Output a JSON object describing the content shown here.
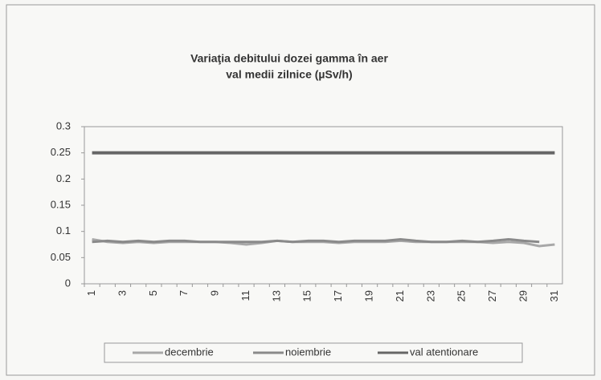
{
  "chart_data": {
    "type": "line",
    "title": "Variaţia debitului dozei gamma în aer",
    "subtitle": "val medii zilnice (µSv/h)",
    "categories": [
      1,
      null,
      3,
      null,
      5,
      null,
      7,
      null,
      9,
      null,
      11,
      null,
      13,
      null,
      15,
      null,
      17,
      null,
      19,
      null,
      21,
      null,
      23,
      null,
      25,
      null,
      27,
      null,
      29,
      null,
      31
    ],
    "series": [
      {
        "name": "decembrie",
        "color": "#a8a8a8",
        "values": [
          0.085,
          0.08,
          0.078,
          0.08,
          0.078,
          0.08,
          0.08,
          0.08,
          0.08,
          0.078,
          0.075,
          0.078,
          0.082,
          0.08,
          0.08,
          0.08,
          0.078,
          0.08,
          0.08,
          0.08,
          0.082,
          0.08,
          0.08,
          0.08,
          0.08,
          0.08,
          0.078,
          0.08,
          0.078,
          0.072,
          0.075
        ]
      },
      {
        "name": "noiembrie",
        "color": "#8a8a8a",
        "values": [
          0.08,
          0.082,
          0.08,
          0.082,
          0.08,
          0.082,
          0.082,
          0.08,
          0.08,
          0.08,
          0.08,
          0.08,
          0.082,
          0.08,
          0.082,
          0.082,
          0.08,
          0.082,
          0.082,
          0.082,
          0.085,
          0.082,
          0.08,
          0.08,
          0.082,
          0.08,
          0.082,
          0.085,
          0.082,
          0.08,
          null
        ]
      },
      {
        "name": "val atentionare",
        "color": "#666666",
        "values": [
          0.25,
          0.25,
          0.25,
          0.25,
          0.25,
          0.25,
          0.25,
          0.25,
          0.25,
          0.25,
          0.25,
          0.25,
          0.25,
          0.25,
          0.25,
          0.25,
          0.25,
          0.25,
          0.25,
          0.25,
          0.25,
          0.25,
          0.25,
          0.25,
          0.25,
          0.25,
          0.25,
          0.25,
          0.25,
          0.25,
          0.25
        ]
      }
    ],
    "ylim": [
      0,
      0.3
    ],
    "yticks": [
      0,
      0.05,
      0.1,
      0.15,
      0.2,
      0.25,
      0.3
    ],
    "grid": false,
    "legend": "bottom"
  }
}
